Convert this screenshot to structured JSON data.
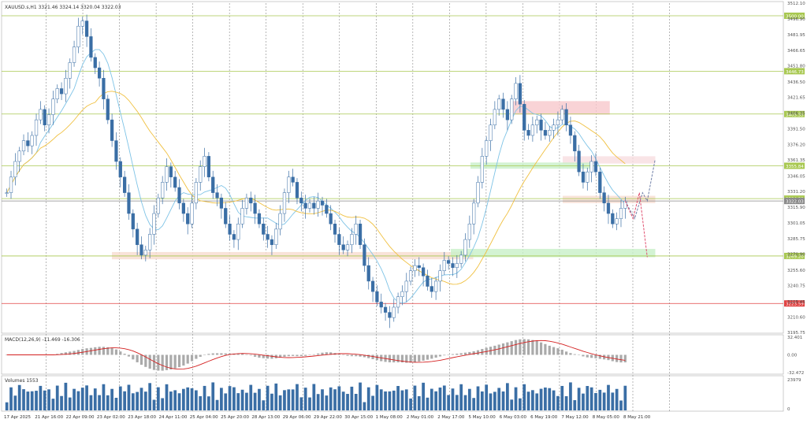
{
  "symbol_info": "XAUUSD.s,H1  3321.46 3324.14 3320.04 3322.03",
  "panels": {
    "macd_label": "MACD(12,26,9) -11.469 -16.306",
    "volumes_label": "Volumes 1553"
  },
  "colors": {
    "candle": "#3a6ea5",
    "ma_fast": "#7ec3e6",
    "ma_slow": "#f0c040",
    "grid_dash": "#888888",
    "level_line": "#a8c850",
    "support_line": "#e04040",
    "macd_hist": "#aaaaaa",
    "macd_signal": "#d42020",
    "volume": "#3a6ea5",
    "zone_red": "#f8c8cc",
    "zone_green": "#b8f0b8",
    "zone_orange": "#f8dcd0",
    "projection_blue": "#7080a8",
    "projection_red": "#e05070"
  },
  "chart_data": [
    {
      "type": "candlestick",
      "title": "XAUUSD.s,H1",
      "ylim": [
        3195.75,
        3512.1
      ],
      "y_ticks": [
        "3512.10",
        "3496.90",
        "3481.95",
        "3466.65",
        "3451.80",
        "3436.50",
        "3421.65",
        "3406.35",
        "3391.50",
        "3376.20",
        "3361.35",
        "3346.05",
        "3331.20",
        "3315.90",
        "3301.05",
        "3285.75",
        "3270.90",
        "3255.60",
        "3240.75",
        "3225.45",
        "3210.60",
        "3195.75"
      ],
      "x_ticks": [
        "17 Apr 2025",
        "21 Apr 16:00",
        "22 Apr 09:00",
        "23 Apr 02:00",
        "23 Apr 18:00",
        "24 Apr 11:00",
        "25 Apr 04:00",
        "25 Apr 20:00",
        "28 Apr 13:00",
        "29 Apr 06:00",
        "29 Apr 22:00",
        "30 Apr 15:00",
        "1 May 08:00",
        "2 May 01:00",
        "2 May 17:00",
        "5 May 10:00",
        "6 May 03:00",
        "6 May 19:00",
        "7 May 12:00",
        "8 May 05:00",
        "8 May 21:00"
      ],
      "horizontal_levels": [
        {
          "value": 3500.0,
          "label": "3500.00",
          "color": "#a8c850"
        },
        {
          "value": 3446.73,
          "label": "3446.73",
          "color": "#a8c850"
        },
        {
          "value": 3405.55,
          "label": "3405.55",
          "color": "#a8c850"
        },
        {
          "value": 3355.84,
          "label": "3355.84",
          "color": "#a8c850"
        },
        {
          "value": 3324.32,
          "label": "3324.32",
          "color": "#a8c850"
        },
        {
          "value": 3322.03,
          "label": "3322.03",
          "color": "#888888"
        },
        {
          "value": 3269.2,
          "label": "3269.20",
          "color": "#a8c850"
        },
        {
          "value": 3223.59,
          "label": "3223.59",
          "color": "#e04040"
        }
      ],
      "zones": [
        {
          "x_from": 0.645,
          "x_to": 0.735,
          "y_top": 3418,
          "y_bot": 3405,
          "color": "#f8c8cc"
        },
        {
          "x_from": 0.712,
          "x_to": 0.79,
          "y_top": 3365,
          "y_bot": 3358,
          "color": "#f8dde0"
        },
        {
          "x_from": 0.595,
          "x_to": 0.712,
          "y_top": 3359,
          "y_bot": 3353,
          "color": "#c8f0c8"
        },
        {
          "x_from": 0.712,
          "x_to": 0.79,
          "y_top": 3327,
          "y_bot": 3320,
          "color": "#f8dcd0"
        },
        {
          "x_from": 0.14,
          "x_to": 0.57,
          "y_top": 3273,
          "y_bot": 3266,
          "color": "#f8dcd0"
        },
        {
          "x_from": 0.57,
          "x_to": 0.79,
          "y_top": 3276,
          "y_bot": 3268,
          "color": "#c8f0c8"
        }
      ],
      "closes": [
        3330,
        3345,
        3360,
        3370,
        3380,
        3375,
        3385,
        3400,
        3410,
        3395,
        3405,
        3420,
        3430,
        3425,
        3440,
        3455,
        3470,
        3490,
        3495,
        3480,
        3460,
        3450,
        3440,
        3420,
        3400,
        3380,
        3360,
        3345,
        3330,
        3310,
        3295,
        3280,
        3270,
        3275,
        3290,
        3310,
        3325,
        3340,
        3355,
        3345,
        3335,
        3320,
        3310,
        3300,
        3320,
        3340,
        3355,
        3365,
        3345,
        3330,
        3325,
        3315,
        3300,
        3290,
        3285,
        3300,
        3315,
        3325,
        3320,
        3310,
        3300,
        3290,
        3285,
        3280,
        3295,
        3310,
        3330,
        3345,
        3340,
        3325,
        3320,
        3315,
        3320,
        3315,
        3322,
        3318,
        3310,
        3300,
        3290,
        3280,
        3275,
        3280,
        3290,
        3300,
        3280,
        3260,
        3245,
        3235,
        3225,
        3220,
        3215,
        3210,
        3220,
        3230,
        3235,
        3245,
        3255,
        3260,
        3258,
        3250,
        3240,
        3235,
        3245,
        3255,
        3265,
        3262,
        3258,
        3262,
        3270,
        3285,
        3300,
        3320,
        3340,
        3365,
        3380,
        3395,
        3410,
        3420,
        3410,
        3400,
        3420,
        3435,
        3415,
        3390,
        3385,
        3395,
        3400,
        3390,
        3385,
        3390,
        3395,
        3400,
        3410,
        3395,
        3385,
        3370,
        3350,
        3340,
        3350,
        3360,
        3350,
        3330,
        3320,
        3310,
        3300,
        3305,
        3315,
        3322
      ],
      "macd_ylim": [
        -32.472,
        32.401
      ],
      "macd_ticks": [
        "32.401",
        "0.00",
        "-32.472"
      ],
      "volume_ylim": [
        0,
        23979
      ],
      "volume_ticks": [
        "23979",
        "0"
      ]
    }
  ]
}
